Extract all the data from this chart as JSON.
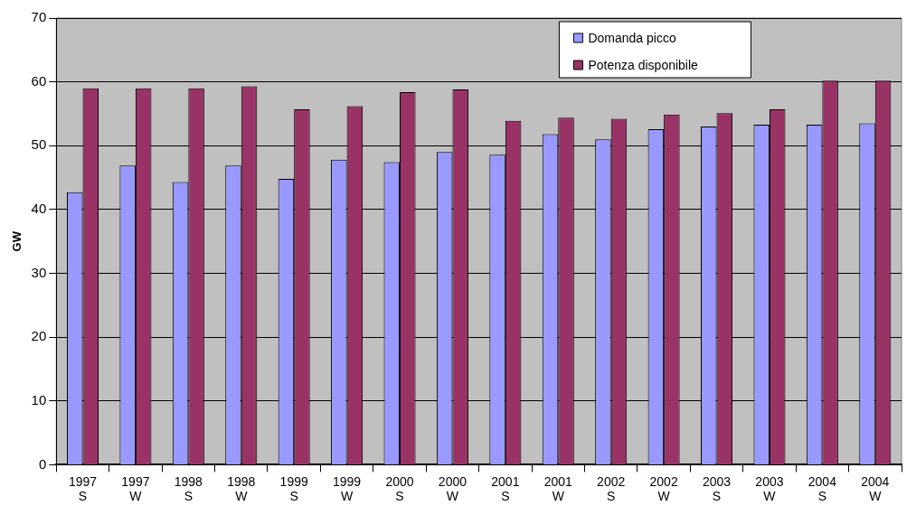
{
  "chart_data": {
    "type": "bar",
    "ylabel": "GW",
    "categories": [
      "1997\nS",
      "1997\nW",
      "1998\nS",
      "1998\nW",
      "1999\nS",
      "1999\nW",
      "2000\nS",
      "2000\nW",
      "2001\nS",
      "2001\nW",
      "2002\nS",
      "2002\nW",
      "2003\nS",
      "2003\nW",
      "2004\nS",
      "2004\nW"
    ],
    "series": [
      {
        "name": "Domanda picco",
        "color": "#9999ff",
        "values": [
          42.7,
          46.9,
          44.3,
          46.9,
          44.8,
          47.8,
          47.4,
          49.0,
          48.6,
          51.8,
          51.0,
          52.6,
          53.0,
          53.3,
          53.3,
          53.5
        ]
      },
      {
        "name": "Potenza disponibile",
        "color": "#993366",
        "values": [
          59.0,
          59.0,
          59.0,
          59.3,
          55.7,
          56.2,
          58.4,
          58.8,
          53.9,
          54.4,
          54.2,
          54.9,
          55.1,
          55.7,
          60.2,
          60.2
        ]
      }
    ],
    "ylim": [
      0,
      70
    ],
    "yticks": [
      0,
      10,
      20,
      30,
      40,
      50,
      60,
      70
    ],
    "grid": "y",
    "legend": "top"
  }
}
